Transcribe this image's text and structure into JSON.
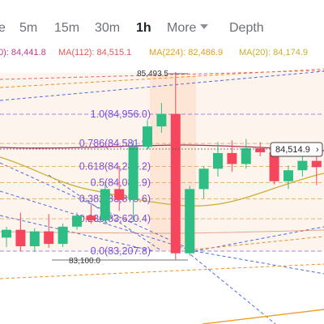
{
  "tabs": [
    {
      "label": "e"
    },
    {
      "label": "5m"
    },
    {
      "label": "15m"
    },
    {
      "label": "30m"
    },
    {
      "label": "1h"
    },
    {
      "label": "More"
    },
    {
      "label": "Depth"
    }
  ],
  "ma": [
    {
      "label": "0): 84,441.8",
      "color": "#c03a8c"
    },
    {
      "label": "MA(112): 84,515.1",
      "color": "#e05a5a"
    },
    {
      "label": "MA(224): 82,486.9",
      "color": "#e0a020"
    },
    {
      "label": "MA(20): 84,174.9",
      "color": "#c8b030"
    }
  ],
  "chart": {
    "high_label": "85,493.5",
    "low_label": "83,100.0",
    "price_tag": "84,514.9",
    "fib": [
      {
        "label": "1.0(84,956.0)",
        "price": 84956.0
      },
      {
        "label": "0.786(84,581.9)",
        "price": 84581.9
      },
      {
        "label": "0.618(84,288.2)",
        "price": 84288.2
      },
      {
        "label": "0.5(84,081.9)",
        "price": 84081.9
      },
      {
        "label": "0.382(83,875.6)",
        "price": 83875.6
      },
      {
        "label": "0.236(83,620.4)",
        "price": 83620.4
      },
      {
        "label": "0.0(83,207.8)",
        "price": 83207.8
      }
    ],
    "candles": [
      {
        "o": 83380,
        "h": 83520,
        "l": 83260,
        "c": 83480
      },
      {
        "o": 83480,
        "h": 83700,
        "l": 83210,
        "c": 83270
      },
      {
        "o": 83270,
        "h": 83500,
        "l": 83200,
        "c": 83460
      },
      {
        "o": 83460,
        "h": 83680,
        "l": 83250,
        "c": 83300
      },
      {
        "o": 83300,
        "h": 83560,
        "l": 83260,
        "c": 83520
      },
      {
        "o": 83520,
        "h": 83700,
        "l": 83480,
        "c": 83660
      },
      {
        "o": 83660,
        "h": 83800,
        "l": 83560,
        "c": 83600
      },
      {
        "o": 83600,
        "h": 84060,
        "l": 83560,
        "c": 84000
      },
      {
        "o": 84000,
        "h": 84290,
        "l": 83720,
        "c": 83860
      },
      {
        "o": 83860,
        "h": 84620,
        "l": 83580,
        "c": 84540
      },
      {
        "o": 84540,
        "h": 84880,
        "l": 84500,
        "c": 84800
      },
      {
        "o": 84800,
        "h": 85100,
        "l": 84720,
        "c": 84960
      },
      {
        "o": 84960,
        "h": 85493.5,
        "l": 83100,
        "c": 83180
      },
      {
        "o": 83180,
        "h": 84040,
        "l": 83150,
        "c": 84000
      },
      {
        "o": 84000,
        "h": 84290,
        "l": 83880,
        "c": 84260
      },
      {
        "o": 84260,
        "h": 84600,
        "l": 84160,
        "c": 84460
      },
      {
        "o": 84460,
        "h": 84620,
        "l": 84220,
        "c": 84320
      },
      {
        "o": 84320,
        "h": 84640,
        "l": 84260,
        "c": 84520
      },
      {
        "o": 84520,
        "h": 84600,
        "l": 84420,
        "c": 84470
      },
      {
        "o": 84470,
        "h": 84520,
        "l": 84060,
        "c": 84100
      },
      {
        "o": 84100,
        "h": 84300,
        "l": 84000,
        "c": 84240
      },
      {
        "o": 84240,
        "h": 84480,
        "l": 84160,
        "c": 84360
      },
      {
        "o": 84360,
        "h": 84440,
        "l": 84050,
        "c": 84280
      }
    ]
  }
}
